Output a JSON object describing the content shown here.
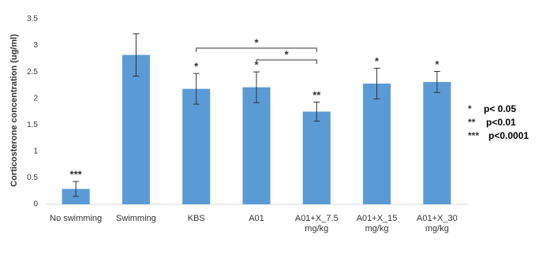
{
  "chart_data": {
    "type": "bar",
    "y_label": "Corticosterone concentration (ug/ml)",
    "categories": [
      "No swimming",
      "Swimming",
      "KBS",
      "A01",
      "A01+X_7.5 mg/kg",
      "A01+X_15 mg/kg",
      "A01+X_30 mg/kg"
    ],
    "values": [
      0.29,
      2.82,
      2.18,
      2.21,
      1.75,
      2.28,
      2.31
    ],
    "errors": [
      0.14,
      0.4,
      0.29,
      0.29,
      0.18,
      0.29,
      0.2
    ],
    "significance": [
      "***",
      null,
      "*",
      "*",
      "**",
      "*",
      "*"
    ],
    "brackets": [
      {
        "from": "KBS",
        "to": "A01+X_7.5 mg/kg",
        "label": "*"
      },
      {
        "from": "A01",
        "to": "A01+X_7.5 mg/kg",
        "label": "*"
      }
    ],
    "significance_key": [
      {
        "symbol": "*",
        "label": "p< 0.05"
      },
      {
        "symbol": "**",
        "label": "p<0.01"
      },
      {
        "symbol": "***",
        "label": "p<0.0001"
      }
    ],
    "color": "#5b9bd5",
    "ylim": [
      0,
      3.5
    ],
    "yticks": [
      0,
      0.5,
      1,
      1.5,
      2,
      2.5,
      3,
      3.5
    ],
    "grid": false
  }
}
